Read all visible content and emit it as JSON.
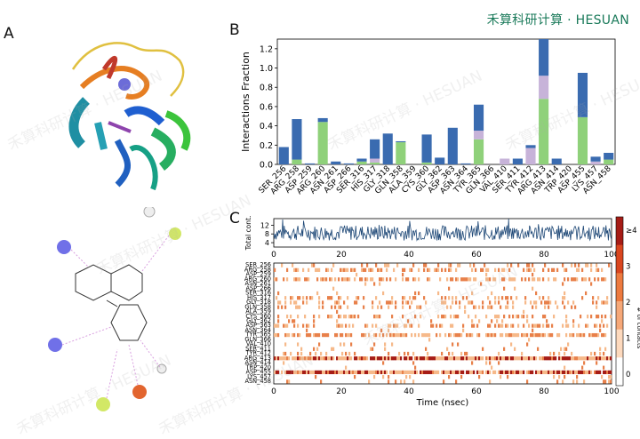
{
  "panels": {
    "a": "A",
    "b": "B",
    "c": "C"
  },
  "brand": "禾算科研计算 · HESUAN",
  "watermark": "禾算科研计算 · HESUAN",
  "colors": {
    "hbond": "#3a6bb0",
    "hydrophobic": "#8fd17a",
    "ionic": "#c7b3d9",
    "water_bridge": "#3a6bb0",
    "contact_line": "#1d4776",
    "heat_high": "#a61c16",
    "heat_low": "#fde6d4",
    "brand_green": "#1a7a5a"
  },
  "chart_data": [
    {
      "type": "bar",
      "ylabel": "Interactions Fraction",
      "ylim": [
        0,
        1.3
      ],
      "yticks": [
        "0.0",
        "0.2",
        "0.4",
        "0.6",
        "0.8",
        "1.0",
        "1.2"
      ],
      "categories": [
        "SER_256",
        "ARG_258",
        "ASP_259",
        "ARG_260",
        "ASN_261",
        "ASP_266",
        "SER_316",
        "HIS_317",
        "GLY_318",
        "GLN_358",
        "ALA_359",
        "CYS_360",
        "GLY_362",
        "ASP_363",
        "ASN_364",
        "TYR_365",
        "GLN_366",
        "VAL_410",
        "SER_411",
        "TYR_412",
        "ARG_413",
        "ASN_414",
        "TRP_420",
        "ASP_455",
        "LYS_457",
        "ASN_458"
      ],
      "series": [
        {
          "key": "hydrophobic",
          "values": [
            0,
            0.05,
            0,
            0.44,
            0,
            0,
            0.03,
            0.02,
            0,
            0.23,
            0,
            0.02,
            0,
            0,
            0,
            0.26,
            0,
            0,
            0,
            0,
            0.68,
            0,
            0,
            0.49,
            0,
            0.05
          ]
        },
        {
          "key": "ionic",
          "values": [
            0,
            0,
            0,
            0,
            0,
            0,
            0,
            0.04,
            0,
            0,
            0,
            0,
            0,
            0,
            0,
            0.09,
            0,
            0.06,
            0,
            0.17,
            0.24,
            0,
            0,
            0,
            0.03,
            0
          ]
        },
        {
          "key": "hbond",
          "values": [
            0.18,
            0.42,
            0.01,
            0.04,
            0.03,
            0.01,
            0.03,
            0.2,
            0.32,
            0.01,
            0,
            0.29,
            0.07,
            0.38,
            0.01,
            0.27,
            0,
            0,
            0.06,
            0.03,
            0.38,
            0.06,
            0,
            0.46,
            0.05,
            0.07
          ]
        }
      ]
    },
    {
      "type": "line",
      "ylabel": "Total cont.",
      "yticks": [
        "4",
        "8",
        "12"
      ],
      "xlim": [
        0,
        100
      ],
      "xticks": [
        "0",
        "20",
        "40",
        "60",
        "80",
        "100"
      ],
      "ylim": [
        2,
        15
      ],
      "mean": 8.5
    },
    {
      "type": "heatmap",
      "xlabel": "Time (nsec)",
      "xticks": [
        "0",
        "20",
        "40",
        "60",
        "80",
        "100"
      ],
      "rows": [
        "SER_256",
        "ARG_258",
        "ASP_259",
        "ARG_260",
        "ASN_261",
        "ASP_266",
        "SER_316",
        "HIS_317",
        "GLY_318",
        "GLN_358",
        "ALA_359",
        "CYS_360",
        "GLY_362",
        "ASP_363",
        "ASN_364",
        "TYR_365",
        "GLN_366",
        "VAL_410",
        "SER_411",
        "TYR_412",
        "ARG_413",
        "ASN_414",
        "TRP_420",
        "ASP_455",
        "LYS_457",
        "ASN_458"
      ],
      "row_density": [
        0.18,
        0.45,
        0.02,
        0.48,
        0.04,
        0.02,
        0.06,
        0.27,
        0.32,
        0.24,
        0.02,
        0.31,
        0.08,
        0.38,
        0.02,
        0.62,
        0.02,
        0.07,
        0.07,
        0.2,
        0.95,
        0.07,
        0.02,
        0.93,
        0.09,
        0.12
      ],
      "colorbar_label": "# of contacts",
      "colorbar_ticks": [
        "0",
        "1",
        "2",
        "3",
        "≥4"
      ]
    }
  ]
}
